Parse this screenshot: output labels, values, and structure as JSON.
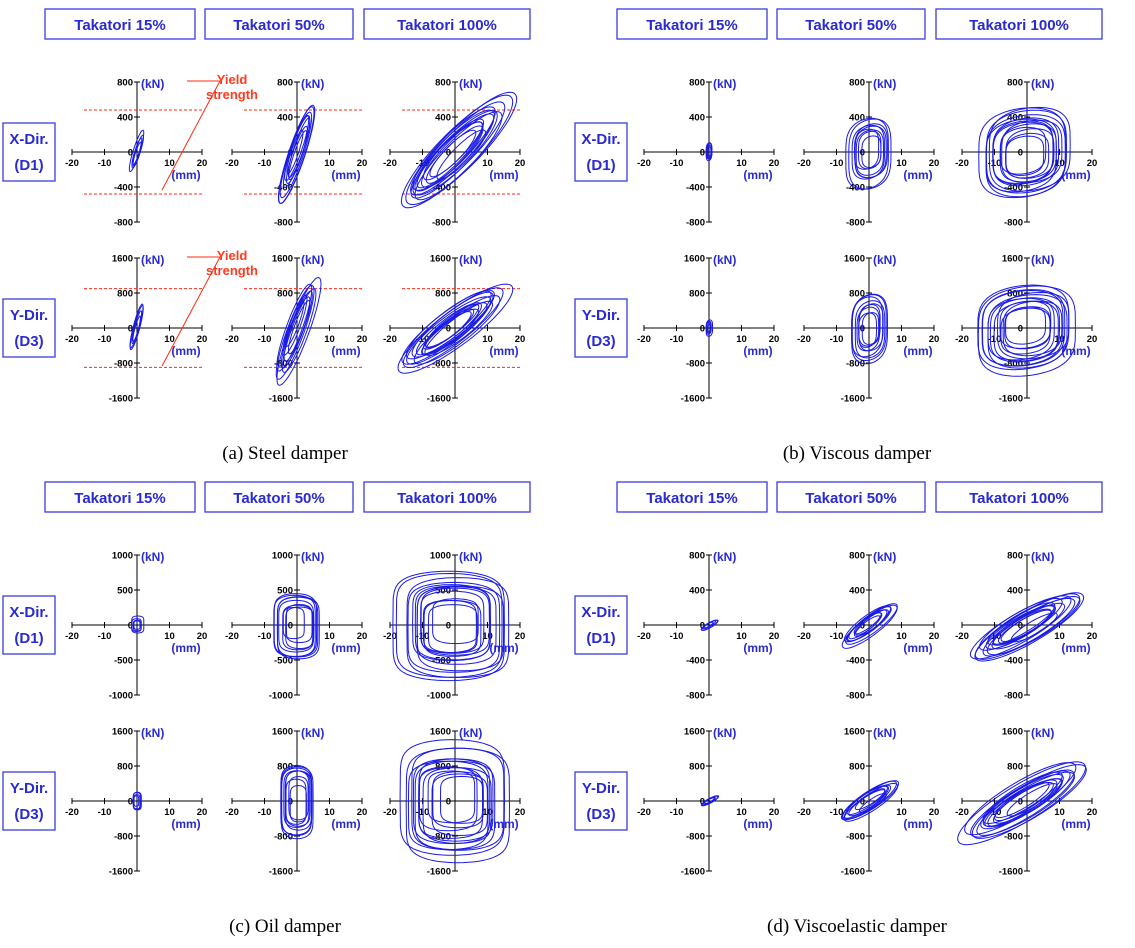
{
  "chart_data": [
    {
      "type": "line",
      "caption": "(a) Steel damper",
      "columns": [
        "Takatori 15%",
        "Takatori 50%",
        "Takatori 100%"
      ],
      "rows": [
        {
          "label_line1": "X-Dir.",
          "label_line2": "(D1)",
          "ylim": [
            -800,
            800
          ],
          "yticks": [
            "800",
            "400",
            "0",
            "-400",
            "-800"
          ],
          "yield": 480,
          "yield_label": [
            "Yield",
            "strength"
          ],
          "amplitudes": [
            {
              "x": 2.5,
              "y": 300
            },
            {
              "x": 6,
              "y": 680
            },
            {
              "x": 18,
              "y": 760
            }
          ]
        },
        {
          "label_line1": "Y-Dir.",
          "label_line2": "(D3)",
          "ylim": [
            -1600,
            1600
          ],
          "yticks": [
            "1600",
            "800",
            "0",
            "-800",
            "-1600"
          ],
          "yield": 900,
          "yield_label": [
            "Yield",
            "strength"
          ],
          "amplitudes": [
            {
              "x": 2.5,
              "y": 700
            },
            {
              "x": 7,
              "y": 1450
            },
            {
              "x": 18,
              "y": 1200
            }
          ]
        }
      ],
      "xticks": [
        "-20",
        "-10",
        "10",
        "20"
      ],
      "xlim": [
        -20,
        20
      ],
      "xunit": "(mm)",
      "yunit": "(kN)",
      "style": "steel"
    },
    {
      "type": "line",
      "caption": "(b) Viscous damper",
      "columns": [
        "Takatori 15%",
        "Takatori 50%",
        "Takatori 100%"
      ],
      "rows": [
        {
          "label_line1": "X-Dir.",
          "label_line2": "(D1)",
          "ylim": [
            -800,
            800
          ],
          "yticks": [
            "800",
            "400",
            "0",
            "-400",
            "-800"
          ],
          "amplitudes": [
            {
              "x": 1,
              "y": 120
            },
            {
              "x": 7,
              "y": 450
            },
            {
              "x": 15,
              "y": 600
            }
          ]
        },
        {
          "label_line1": "Y-Dir.",
          "label_line2": "(D3)",
          "ylim": [
            -1600,
            1600
          ],
          "yticks": [
            "1600",
            "800",
            "0",
            "-800",
            "-1600"
          ],
          "amplitudes": [
            {
              "x": 1,
              "y": 200
            },
            {
              "x": 6,
              "y": 900
            },
            {
              "x": 16,
              "y": 1150
            }
          ]
        }
      ],
      "xticks": [
        "-20",
        "-10",
        "10",
        "20"
      ],
      "xlim": [
        -20,
        20
      ],
      "xunit": "(mm)",
      "yunit": "(kN)",
      "style": "viscous"
    },
    {
      "type": "line",
      "caption": "(c) Oil damper",
      "columns": [
        "Takatori 15%",
        "Takatori 50%",
        "Takatori 100%"
      ],
      "rows": [
        {
          "label_line1": "X-Dir.",
          "label_line2": "(D1)",
          "ylim": [
            -1000,
            1000
          ],
          "yticks": [
            "1000",
            "500",
            "0",
            "-500",
            "-1000"
          ],
          "amplitudes": [
            {
              "x": 2,
              "y": 130
            },
            {
              "x": 8,
              "y": 550
            },
            {
              "x": 18,
              "y": 820
            }
          ]
        },
        {
          "label_line1": "Y-Dir.",
          "label_line2": "(D3)",
          "ylim": [
            -1600,
            1600
          ],
          "yticks": [
            "1600",
            "800",
            "0",
            "-800",
            "-1600"
          ],
          "amplitudes": [
            {
              "x": 1.5,
              "y": 250
            },
            {
              "x": 6,
              "y": 1000
            },
            {
              "x": 17,
              "y": 1400
            }
          ]
        }
      ],
      "xticks": [
        "-20",
        "-10",
        "10",
        "20"
      ],
      "xlim": [
        -20,
        20
      ],
      "xunit": "(mm)",
      "yunit": "(kN)",
      "style": "oil"
    },
    {
      "type": "line",
      "caption": "(d) Viscoelastic damper",
      "columns": [
        "Takatori 15%",
        "Takatori 50%",
        "Takatori 100%"
      ],
      "rows": [
        {
          "label_line1": "X-Dir.",
          "label_line2": "(D1)",
          "ylim": [
            -800,
            800
          ],
          "yticks": [
            "800",
            "400",
            "0",
            "-400",
            "-800"
          ],
          "amplitudes": [
            {
              "x": 3,
              "y": 80
            },
            {
              "x": 9,
              "y": 300
            },
            {
              "x": 18,
              "y": 480
            }
          ]
        },
        {
          "label_line1": "Y-Dir.",
          "label_line2": "(D3)",
          "ylim": [
            -1600,
            1600
          ],
          "yticks": [
            "1600",
            "800",
            "0",
            "-800",
            "-1600"
          ],
          "amplitudes": [
            {
              "x": 3,
              "y": 150
            },
            {
              "x": 10,
              "y": 600
            },
            {
              "x": 20,
              "y": 1100
            }
          ]
        }
      ],
      "xticks": [
        "-20",
        "-10",
        "10",
        "20"
      ],
      "xlim": [
        -20,
        20
      ],
      "xunit": "(mm)",
      "yunit": "(kN)",
      "style": "viscoelastic"
    }
  ]
}
